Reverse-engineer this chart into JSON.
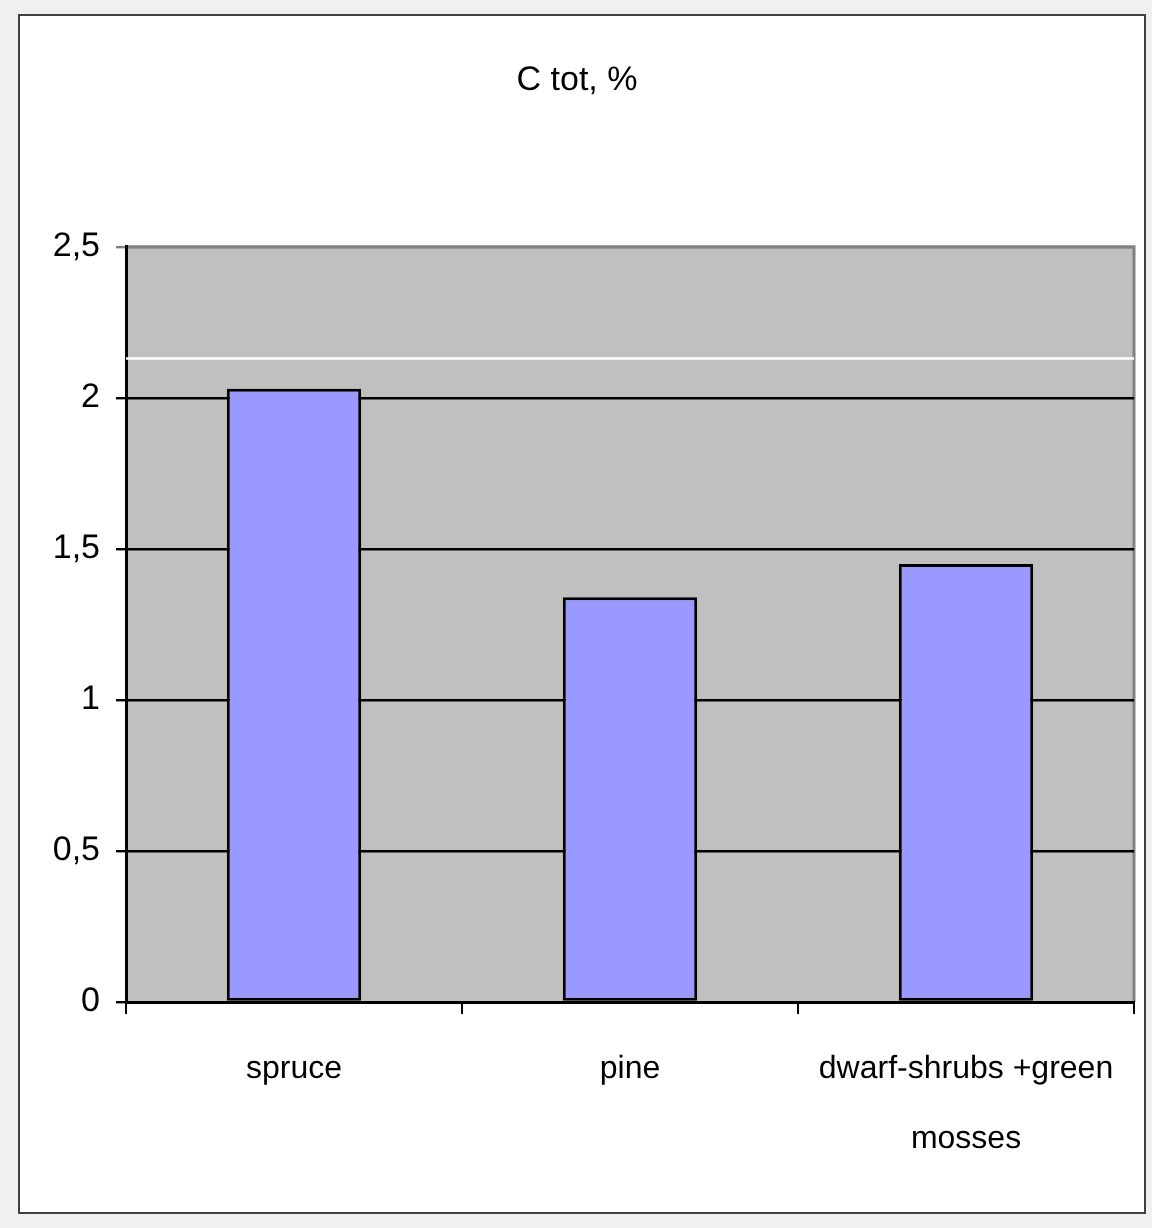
{
  "chart_data": {
    "type": "bar",
    "title": "C tot, %",
    "categories": [
      "spruce",
      "pine",
      "dwarf-shrubs +green mosses"
    ],
    "values": [
      2.03,
      1.34,
      1.45
    ],
    "color": "#9999ff",
    "ylim": [
      0,
      2.5
    ],
    "yticks": [
      0,
      {
        "value": 0.5,
        "label": "0,5"
      },
      1,
      {
        "value": 1.5,
        "label": "1,5"
      },
      2,
      {
        "value": 2.5,
        "label": "2,5"
      }
    ],
    "grid": "y",
    "legend": false,
    "ref_lines": [
      {
        "axis": "y",
        "value": 2.13,
        "color": "#ffffff"
      }
    ]
  }
}
